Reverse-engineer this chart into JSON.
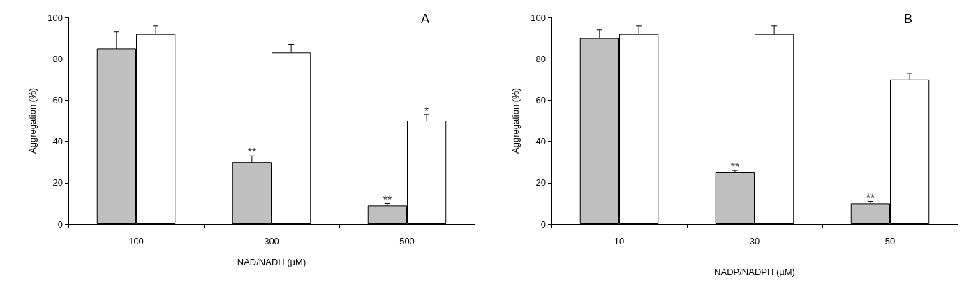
{
  "chart_data": [
    {
      "type": "bar",
      "xlabel": "NAD/NADH (µM)",
      "ylabel": "Aggregation (%)",
      "categories": [
        "100",
        "300",
        "500"
      ],
      "ylim": [
        0,
        100
      ],
      "yticks": [
        0,
        20,
        40,
        60,
        80,
        100
      ],
      "series": [
        {
          "color": "#bfbfbf",
          "values": [
            85,
            30,
            9
          ],
          "errors": [
            8,
            3,
            1
          ]
        },
        {
          "color": "#ffffff",
          "values": [
            92,
            83,
            50
          ],
          "errors": [
            4,
            4,
            3
          ]
        }
      ],
      "annotations": [
        "A",
        {
          "text": "**",
          "x": "300",
          "y": 30
        },
        {
          "text": "**",
          "x": "500",
          "y": 9
        },
        {
          "text": "*",
          "x": "500",
          "y": 50
        }
      ]
    },
    {
      "type": "bar",
      "xlabel": "NADP/NADPH (µM)",
      "ylabel": "Aggregation (%)",
      "categories": [
        "10",
        "30",
        "50"
      ],
      "ylim": [
        0,
        100
      ],
      "yticks": [
        0,
        20,
        40,
        60,
        80,
        100
      ],
      "series": [
        {
          "color": "#bfbfbf",
          "values": [
            90,
            25,
            10
          ],
          "errors": [
            4,
            1,
            1
          ]
        },
        {
          "color": "#ffffff",
          "values": [
            92,
            92,
            70
          ],
          "errors": [
            4,
            4,
            3
          ]
        }
      ],
      "annotations": [
        "B",
        {
          "text": "**",
          "x": "30",
          "y": 25
        },
        {
          "text": "**",
          "x": "50",
          "y": 10
        }
      ]
    }
  ]
}
